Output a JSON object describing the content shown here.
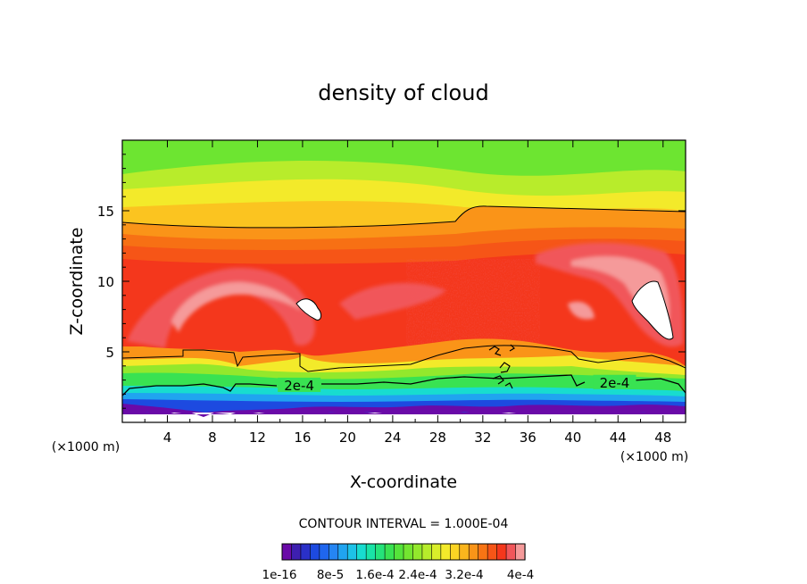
{
  "chart_data": {
    "type": "heatmap",
    "title": "density of cloud",
    "xlabel": "X-coordinate",
    "ylabel": "Z-coordinate",
    "x_unit_label": "(×1000 m)",
    "x_unit_label_right": "(×1000 m)",
    "xlim": [
      0,
      50
    ],
    "ylim": [
      0,
      20
    ],
    "x_ticks": [
      4,
      8,
      12,
      16,
      20,
      24,
      28,
      32,
      36,
      40,
      44,
      48
    ],
    "y_ticks": [
      5,
      10,
      15
    ],
    "contour_interval_text": "CONTOUR INTERVAL = 1.000E-04",
    "contour_labels": [
      {
        "text": "2e-4",
        "x": 15.7,
        "z": 2.6
      },
      {
        "text": "2e-4",
        "x": 43.7,
        "z": 2.8
      }
    ],
    "colorbar": {
      "tick_labels": [
        "1e-16",
        "8e-5",
        "1.6e-4",
        "2.4e-4",
        "3.2e-4",
        "4e-4"
      ],
      "levels": 26,
      "colors": [
        "#6a0aa8",
        "#3d1fb0",
        "#2a30c8",
        "#1d4ae0",
        "#1f66ee",
        "#2585f3",
        "#20a4f0",
        "#1dc2e8",
        "#18dccf",
        "#19e3a6",
        "#25e37a",
        "#39e252",
        "#55e33a",
        "#73e530",
        "#93e82c",
        "#b6ec2b",
        "#d9ee2a",
        "#f3ea2a",
        "#fbd424",
        "#fbb51d",
        "#fa9418",
        "#f87414",
        "#f65517",
        "#f4371c",
        "#f1565a",
        "#f59a9a"
      ]
    },
    "field_bands": [
      {
        "region": "z 17-20",
        "level_range": "green (≈1.2e-4)"
      },
      {
        "region": "z 14-17",
        "level_range": "yellow to orange (≈1.8e-4–2.4e-4)"
      },
      {
        "region": "z 4-13",
        "level_range": "red (≈3.2e-4–3.6e-4) with pink/white maxima"
      },
      {
        "region": "z 2-4",
        "level_range": "green to cyan (≈1e-4–2e-4)"
      },
      {
        "region": "z 0.5-2",
        "level_range": "blue to purple (≈0–4e-5)"
      }
    ]
  }
}
